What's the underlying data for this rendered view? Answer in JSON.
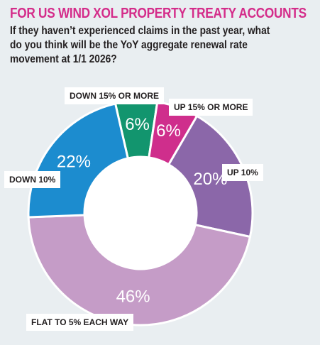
{
  "header": {
    "title": "FOR US WIND XOL PROPERTY TREATY ACCOUNTS",
    "question": "If they haven’t experienced claims in the past year, what do you think will be the YoY aggregate renewal rate movement at 1/1 2026?"
  },
  "colors": {
    "title": "#d42c8a",
    "background": "#e9eef1"
  },
  "chart_data": {
    "type": "pie",
    "variant": "donut",
    "title": "FOR US WIND XOL PROPERTY TREATY ACCOUNTS",
    "categories": [
      "DOWN 15% OR MORE",
      "UP 15% OR MORE",
      "UP 10%",
      "FLAT TO 5% EACH WAY",
      "DOWN 10%"
    ],
    "values": [
      6,
      6,
      20,
      46,
      22
    ],
    "value_labels": [
      "6%",
      "6%",
      "20%",
      "46%",
      "22%"
    ],
    "colors": [
      "#12956e",
      "#cf2e8c",
      "#8b67a9",
      "#c59cc7",
      "#1c8ccf"
    ],
    "legend": "labels beside slices"
  }
}
